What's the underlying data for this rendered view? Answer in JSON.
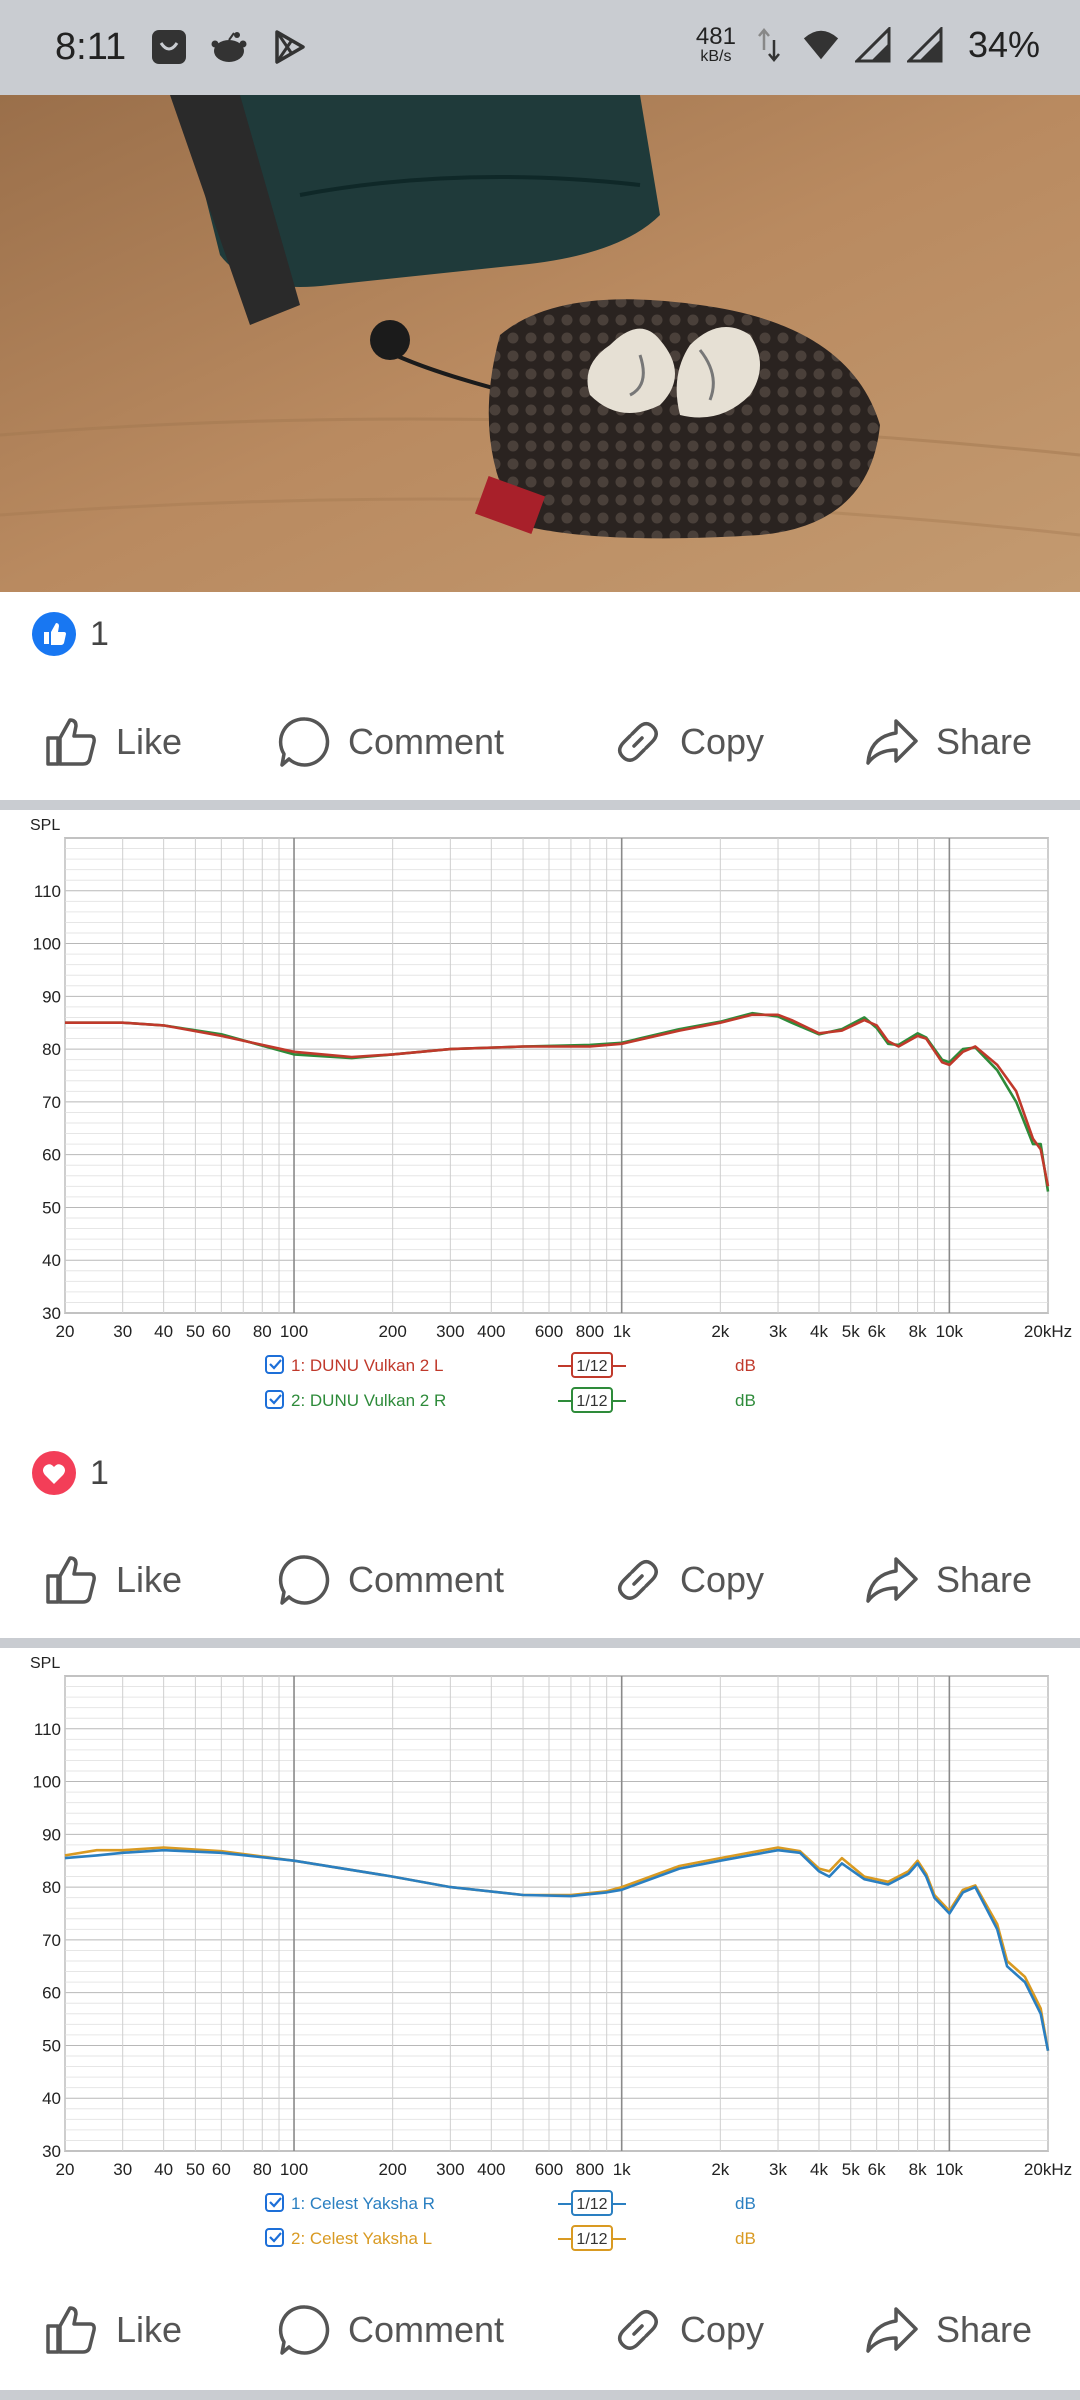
{
  "status_bar": {
    "time": "8:11",
    "net_speed_value": "481",
    "net_speed_unit": "kB/s",
    "battery": "34%",
    "icons": [
      "bag-icon",
      "reddit-icon",
      "play-store-icon",
      "data-arrows-icon",
      "wifi-icon",
      "signal-icon",
      "signal-icon"
    ]
  },
  "post1": {
    "reaction_icon": "like-reaction-icon",
    "reaction_count": "1"
  },
  "post2": {
    "reaction_icon": "love-reaction-icon",
    "reaction_count": "1"
  },
  "actions": {
    "like": "Like",
    "comment": "Comment",
    "copy": "Copy",
    "share": "Share"
  },
  "colors": {
    "facebook_blue": "#1877f2",
    "love_red": "#f33e58",
    "dunu_left": "#c0392b",
    "dunu_right": "#2e8b3a",
    "yaksha_right": "#2a7fc1",
    "yaksha_left": "#d99a22"
  },
  "chart_data": [
    {
      "type": "line",
      "ylabel": "SPL",
      "xlabel": "",
      "x_scale": "log",
      "xlim": [
        20,
        20000
      ],
      "ylim": [
        30,
        120
      ],
      "y_ticks": [
        "30",
        "40",
        "50",
        "60",
        "70",
        "80",
        "90",
        "100",
        "110"
      ],
      "x_ticks": [
        {
          "v": 20,
          "label": "20"
        },
        {
          "v": 30,
          "label": "30"
        },
        {
          "v": 40,
          "label": "40"
        },
        {
          "v": 50,
          "label": "50"
        },
        {
          "v": 60,
          "label": "60"
        },
        {
          "v": 80,
          "label": "80"
        },
        {
          "v": 100,
          "label": "100"
        },
        {
          "v": 200,
          "label": "200"
        },
        {
          "v": 300,
          "label": "300"
        },
        {
          "v": 400,
          "label": "400"
        },
        {
          "v": 600,
          "label": "600"
        },
        {
          "v": 800,
          "label": "800"
        },
        {
          "v": 1000,
          "label": "1k"
        },
        {
          "v": 2000,
          "label": "2k"
        },
        {
          "v": 3000,
          "label": "3k"
        },
        {
          "v": 4000,
          "label": "4k"
        },
        {
          "v": 5000,
          "label": "5k"
        },
        {
          "v": 6000,
          "label": "6k"
        },
        {
          "v": 8000,
          "label": "8k"
        },
        {
          "v": 10000,
          "label": "10k"
        },
        {
          "v": 20000,
          "label": "20kHz"
        }
      ],
      "grid": true,
      "legend_position": "bottom-center",
      "series": [
        {
          "name": "1: DUNU Vulkan 2 L",
          "smoothing": "1/12",
          "unit": "dB",
          "color": "#c0392b",
          "points": [
            [
              20,
              85
            ],
            [
              30,
              85
            ],
            [
              40,
              84.5
            ],
            [
              60,
              82.5
            ],
            [
              100,
              79.5
            ],
            [
              150,
              78.5
            ],
            [
              200,
              79
            ],
            [
              300,
              80
            ],
            [
              500,
              80.5
            ],
            [
              800,
              80.5
            ],
            [
              1000,
              81
            ],
            [
              1500,
              83.5
            ],
            [
              2000,
              85
            ],
            [
              2500,
              86.5
            ],
            [
              3000,
              86.5
            ],
            [
              3300,
              85.5
            ],
            [
              4000,
              83
            ],
            [
              4700,
              83.5
            ],
            [
              5500,
              85.5
            ],
            [
              6000,
              84.5
            ],
            [
              6500,
              81.5
            ],
            [
              7000,
              80.5
            ],
            [
              8000,
              82.5
            ],
            [
              8500,
              82
            ],
            [
              9500,
              77.5
            ],
            [
              10000,
              77
            ],
            [
              11000,
              79.5
            ],
            [
              12000,
              80.5
            ],
            [
              14000,
              77
            ],
            [
              16000,
              72
            ],
            [
              18000,
              63
            ],
            [
              19000,
              61
            ],
            [
              20000,
              54
            ]
          ]
        },
        {
          "name": "2: DUNU Vulkan 2 R",
          "smoothing": "1/12",
          "unit": "dB",
          "color": "#2e8b3a",
          "points": [
            [
              20,
              85
            ],
            [
              30,
              85
            ],
            [
              40,
              84.5
            ],
            [
              60,
              82.8
            ],
            [
              100,
              79
            ],
            [
              150,
              78.3
            ],
            [
              200,
              79
            ],
            [
              300,
              80
            ],
            [
              500,
              80.5
            ],
            [
              800,
              80.8
            ],
            [
              1000,
              81.2
            ],
            [
              1500,
              83.8
            ],
            [
              2000,
              85.2
            ],
            [
              2500,
              86.8
            ],
            [
              3000,
              86.2
            ],
            [
              3300,
              85
            ],
            [
              4000,
              82.8
            ],
            [
              4700,
              83.8
            ],
            [
              5500,
              86
            ],
            [
              6000,
              84
            ],
            [
              6500,
              81
            ],
            [
              7000,
              80.8
            ],
            [
              8000,
              83
            ],
            [
              8500,
              82.2
            ],
            [
              9500,
              78
            ],
            [
              10000,
              77.5
            ],
            [
              11000,
              80
            ],
            [
              12000,
              80.3
            ],
            [
              14000,
              76
            ],
            [
              16000,
              70
            ],
            [
              18000,
              62
            ],
            [
              19000,
              62
            ],
            [
              20000,
              53
            ]
          ]
        }
      ]
    },
    {
      "type": "line",
      "ylabel": "SPL",
      "xlabel": "",
      "x_scale": "log",
      "xlim": [
        20,
        20000
      ],
      "ylim": [
        30,
        120
      ],
      "y_ticks": [
        "30",
        "40",
        "50",
        "60",
        "70",
        "80",
        "90",
        "100",
        "110"
      ],
      "x_ticks": [
        {
          "v": 20,
          "label": "20"
        },
        {
          "v": 30,
          "label": "30"
        },
        {
          "v": 40,
          "label": "40"
        },
        {
          "v": 50,
          "label": "50"
        },
        {
          "v": 60,
          "label": "60"
        },
        {
          "v": 80,
          "label": "80"
        },
        {
          "v": 100,
          "label": "100"
        },
        {
          "v": 200,
          "label": "200"
        },
        {
          "v": 300,
          "label": "300"
        },
        {
          "v": 400,
          "label": "400"
        },
        {
          "v": 600,
          "label": "600"
        },
        {
          "v": 800,
          "label": "800"
        },
        {
          "v": 1000,
          "label": "1k"
        },
        {
          "v": 2000,
          "label": "2k"
        },
        {
          "v": 3000,
          "label": "3k"
        },
        {
          "v": 4000,
          "label": "4k"
        },
        {
          "v": 5000,
          "label": "5k"
        },
        {
          "v": 6000,
          "label": "6k"
        },
        {
          "v": 8000,
          "label": "8k"
        },
        {
          "v": 10000,
          "label": "10k"
        },
        {
          "v": 20000,
          "label": "20kHz"
        }
      ],
      "grid": true,
      "legend_position": "bottom-center",
      "series": [
        {
          "name": "1: Celest Yaksha R",
          "smoothing": "1/12",
          "unit": "dB",
          "color": "#2a7fc1",
          "points": [
            [
              20,
              85.5
            ],
            [
              25,
              86
            ],
            [
              30,
              86.5
            ],
            [
              40,
              87
            ],
            [
              60,
              86.5
            ],
            [
              100,
              85
            ],
            [
              200,
              82
            ],
            [
              300,
              80
            ],
            [
              500,
              78.5
            ],
            [
              700,
              78.3
            ],
            [
              900,
              79
            ],
            [
              1000,
              79.5
            ],
            [
              1500,
              83.5
            ],
            [
              2000,
              85
            ],
            [
              3000,
              87
            ],
            [
              3500,
              86.5
            ],
            [
              4000,
              83
            ],
            [
              4300,
              82
            ],
            [
              4700,
              84.5
            ],
            [
              5500,
              81.5
            ],
            [
              6500,
              80.5
            ],
            [
              7500,
              82.5
            ],
            [
              8000,
              84.5
            ],
            [
              8500,
              82
            ],
            [
              9000,
              78
            ],
            [
              10000,
              75
            ],
            [
              11000,
              79
            ],
            [
              12000,
              80
            ],
            [
              14000,
              72
            ],
            [
              15000,
              65
            ],
            [
              17000,
              62
            ],
            [
              19000,
              56
            ],
            [
              20000,
              49
            ]
          ]
        },
        {
          "name": "2: Celest Yaksha L",
          "smoothing": "1/12",
          "unit": "dB",
          "color": "#d99a22",
          "points": [
            [
              20,
              86
            ],
            [
              25,
              87
            ],
            [
              30,
              87
            ],
            [
              40,
              87.5
            ],
            [
              60,
              86.8
            ],
            [
              100,
              85
            ],
            [
              200,
              82
            ],
            [
              300,
              80
            ],
            [
              500,
              78.5
            ],
            [
              700,
              78.5
            ],
            [
              900,
              79.2
            ],
            [
              1000,
              80
            ],
            [
              1500,
              84
            ],
            [
              2000,
              85.5
            ],
            [
              3000,
              87.5
            ],
            [
              3500,
              86.8
            ],
            [
              4000,
              83.5
            ],
            [
              4300,
              83
            ],
            [
              4700,
              85.5
            ],
            [
              5500,
              82
            ],
            [
              6500,
              81
            ],
            [
              7500,
              83
            ],
            [
              8000,
              85
            ],
            [
              8500,
              82.5
            ],
            [
              9000,
              78.5
            ],
            [
              10000,
              75.5
            ],
            [
              11000,
              79.5
            ],
            [
              12000,
              80.3
            ],
            [
              14000,
              73
            ],
            [
              15000,
              66
            ],
            [
              17000,
              63
            ],
            [
              19000,
              57
            ],
            [
              20000,
              49
            ]
          ]
        }
      ]
    }
  ]
}
